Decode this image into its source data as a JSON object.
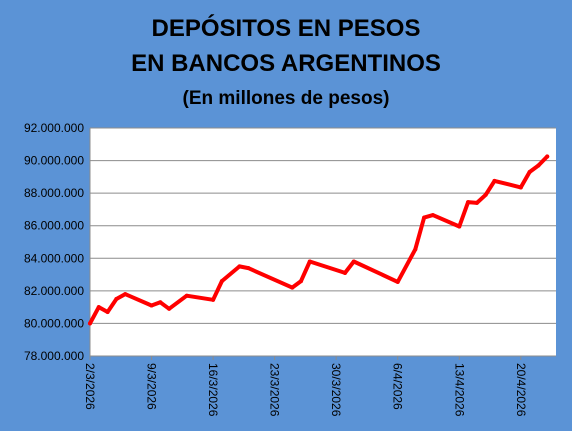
{
  "chart_data": {
    "type": "line",
    "title": [
      "DEPÓSITOS EN PESOS",
      "EN BANCOS ARGENTINOS"
    ],
    "subtitle": "(En millones de pesos)",
    "xlabel": "",
    "ylabel": "",
    "ylim": [
      78000000,
      92000000
    ],
    "y_ticks": [
      78000000,
      80000000,
      82000000,
      84000000,
      86000000,
      88000000,
      90000000,
      92000000
    ],
    "y_tick_labels": [
      "78.000.000",
      "80.000.000",
      "82.000.000",
      "84.000.000",
      "86.000.000",
      "88.000.000",
      "90.000.000",
      "92.000.000"
    ],
    "x_range": [
      "2026-03-02",
      "2026-04-24"
    ],
    "x_ticks": [
      "2026-03-02",
      "2026-03-09",
      "2026-03-16",
      "2026-03-23",
      "2026-03-30",
      "2026-04-06",
      "2026-04-13",
      "2026-04-20"
    ],
    "x_tick_labels": [
      "2/3/2026",
      "9/3/2026",
      "16/3/2026",
      "23/3/2026",
      "30/3/2026",
      "6/4/2026",
      "13/4/2026",
      "20/4/2026"
    ],
    "grid": "horizontal",
    "line_color": "#ff0000",
    "plot_background": "#ffffff",
    "figure_background": "#5b93d6",
    "series": [
      {
        "x": [
          "2026-03-02",
          "2026-03-03",
          "2026-03-04",
          "2026-03-05",
          "2026-03-06",
          "2026-03-09",
          "2026-03-10",
          "2026-03-11",
          "2026-03-13",
          "2026-03-16",
          "2026-03-17",
          "2026-03-19",
          "2026-03-20",
          "2026-03-25",
          "2026-03-26",
          "2026-03-27",
          "2026-03-31",
          "2026-04-01",
          "2026-04-06",
          "2026-04-08",
          "2026-04-09",
          "2026-04-10",
          "2026-04-13",
          "2026-04-14",
          "2026-04-15",
          "2026-04-16",
          "2026-04-17",
          "2026-04-20",
          "2026-04-21",
          "2026-04-22",
          "2026-04-23"
        ],
        "values": [
          80000000,
          81000000,
          80700000,
          81500000,
          81800000,
          81100000,
          81300000,
          80900000,
          81700000,
          81450000,
          82600000,
          83500000,
          83400000,
          82200000,
          82600000,
          83800000,
          83100000,
          83800000,
          82550000,
          84550000,
          86500000,
          86650000,
          85950000,
          87450000,
          87400000,
          87900000,
          88750000,
          88350000,
          89300000,
          89700000,
          90250000
        ]
      }
    ]
  }
}
